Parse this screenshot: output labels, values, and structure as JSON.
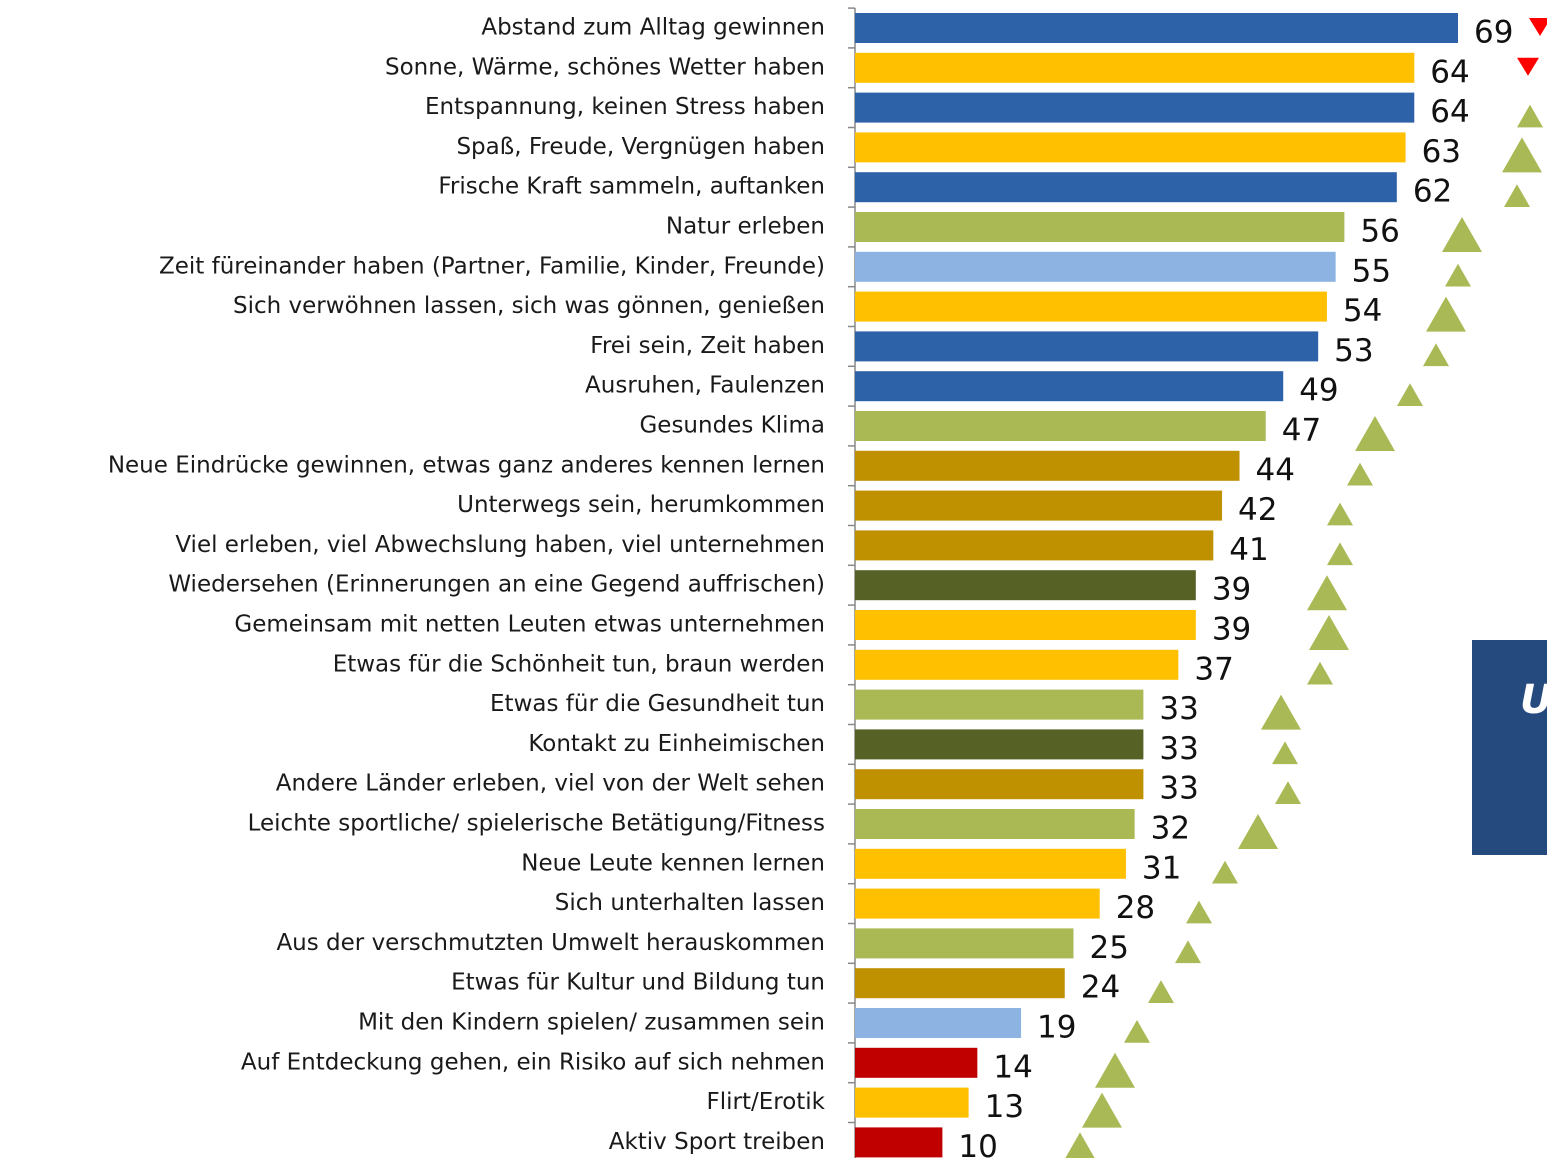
{
  "chart_data": {
    "type": "bar",
    "orientation": "horizontal",
    "categories": [
      "Abstand zum Alltag  gewinnen",
      "Sonne, Wärme, schönes Wetter haben",
      "Entspannung, keinen Stress haben",
      "Spaß, Freude, Vergnügen haben",
      "Frische Kraft sammeln, auftanken",
      "Natur erleben",
      "Zeit füreinander haben (Partner, Familie, Kinder, Freunde)",
      "Sich verwöhnen lassen, sich was gönnen, genießen",
      "Frei sein, Zeit haben",
      "Ausruhen, Faulenzen",
      "Gesundes Klima",
      "Neue Eindrücke gewinnen, etwas ganz anderes kennen lernen",
      "Unterwegs sein, herumkommen",
      "Viel erleben, viel Abwechslung haben, viel unternehmen",
      "Wiedersehen (Erinnerungen an eine Gegend auffrischen)",
      "Gemeinsam mit netten Leuten etwas unternehmen",
      "Etwas für die Schönheit tun, braun werden",
      "Etwas für die Gesundheit tun",
      "Kontakt zu Einheimischen",
      "Andere Länder erleben, viel von der Welt sehen",
      "Leichte sportliche/ spielerische Betätigung/Fitness",
      "Neue Leute kennen lernen",
      "Sich unterhalten lassen",
      "Aus der verschmutzten Umwelt herauskommen",
      "Etwas für Kultur und  Bildung tun",
      "Mit den Kindern spielen/ zusammen sein",
      "Auf Entdeckung gehen, ein Risiko auf sich nehmen",
      "Flirt/Erotik",
      "Aktiv Sport treiben"
    ],
    "values": [
      69,
      64,
      64,
      63,
      62,
      56,
      55,
      54,
      53,
      49,
      47,
      44,
      42,
      41,
      39,
      39,
      37,
      33,
      33,
      33,
      32,
      31,
      28,
      25,
      24,
      19,
      14,
      13,
      10
    ],
    "colors": [
      "#2e62a8",
      "#ffc000",
      "#2e62a8",
      "#ffc000",
      "#2e62a8",
      "#abb955",
      "#8db3e2",
      "#ffc000",
      "#2e62a8",
      "#2e62a8",
      "#abb955",
      "#bf9000",
      "#bf9000",
      "#bf9000",
      "#566125",
      "#ffc000",
      "#ffc000",
      "#abb955",
      "#566125",
      "#bf9000",
      "#abb955",
      "#ffc000",
      "#ffc000",
      "#abb955",
      "#bf9000",
      "#8db3e2",
      "#c00000",
      "#ffc000",
      "#c00000"
    ],
    "annotation": "U"
  }
}
